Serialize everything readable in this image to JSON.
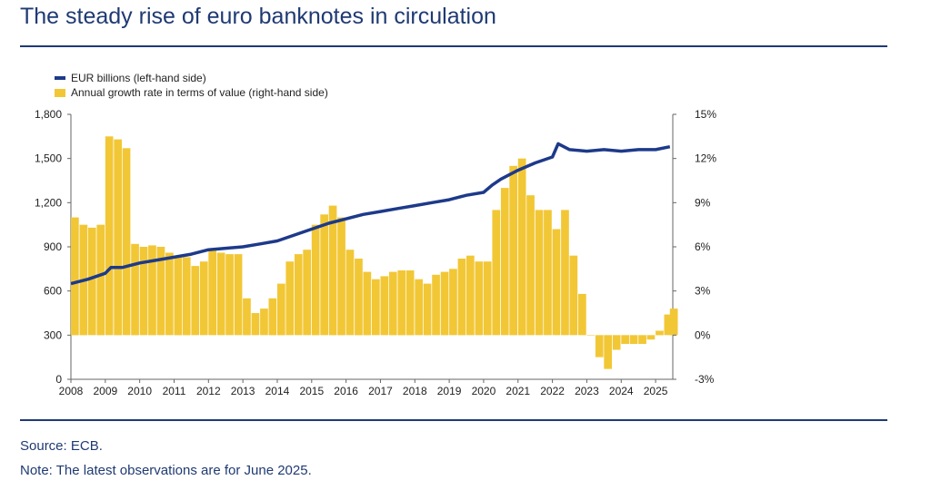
{
  "header": {
    "title": "The steady rise of euro banknotes in circulation"
  },
  "footer": {
    "source": "Source: ECB.",
    "note": "Note: The latest observations are for June 2025."
  },
  "colors": {
    "line": "#1d3a8a",
    "bars": "#f2c736",
    "title": "#1f3a73"
  },
  "chart_data": {
    "type": "bar+line",
    "legend": [
      "EUR billions (left-hand side)",
      "Annual growth rate in terms of value (right-hand side)"
    ],
    "legend_position": "top-left",
    "grid": false,
    "left_axis": {
      "ylim": [
        0,
        1800
      ],
      "ticks": [
        "0",
        "300",
        "600",
        "900",
        "1,200",
        "1,500",
        "1,800"
      ]
    },
    "right_axis": {
      "ylim": [
        -3,
        15
      ],
      "ticks": [
        "-3%",
        "0%",
        "3%",
        "6%",
        "9%",
        "12%",
        "15%"
      ]
    },
    "x_axis": {
      "ticks": [
        "2008",
        "2009",
        "2010",
        "2011",
        "2012",
        "2013",
        "2014",
        "2015",
        "2016",
        "2017",
        "2018",
        "2019",
        "2020",
        "2021",
        "2022",
        "2023",
        "2024",
        "2025"
      ]
    },
    "series": [
      {
        "name": "EUR billions (left-hand side)",
        "kind": "line",
        "axis": "left",
        "x": [
          "2008-01",
          "2008-07",
          "2009-01",
          "2009-03",
          "2009-07",
          "2010-01",
          "2010-07",
          "2011-01",
          "2011-07",
          "2012-01",
          "2012-07",
          "2013-01",
          "2013-07",
          "2014-01",
          "2014-07",
          "2015-01",
          "2015-07",
          "2016-01",
          "2016-07",
          "2017-01",
          "2017-07",
          "2018-01",
          "2018-07",
          "2019-01",
          "2019-07",
          "2020-01",
          "2020-04",
          "2020-07",
          "2021-01",
          "2021-07",
          "2022-01",
          "2022-03",
          "2022-07",
          "2023-01",
          "2023-07",
          "2024-01",
          "2024-07",
          "2025-01",
          "2025-06"
        ],
        "values": [
          650,
          680,
          720,
          760,
          760,
          790,
          810,
          830,
          850,
          880,
          890,
          900,
          920,
          940,
          980,
          1020,
          1060,
          1090,
          1120,
          1140,
          1160,
          1180,
          1200,
          1220,
          1250,
          1270,
          1320,
          1360,
          1420,
          1470,
          1510,
          1600,
          1560,
          1550,
          1560,
          1550,
          1560,
          1560,
          1580
        ]
      },
      {
        "name": "Annual growth rate in terms of value (right-hand side)",
        "kind": "bar",
        "axis": "right",
        "x": [
          "2008-01",
          "2008-04",
          "2008-07",
          "2008-10",
          "2009-01",
          "2009-04",
          "2009-07",
          "2009-10",
          "2010-01",
          "2010-04",
          "2010-07",
          "2010-10",
          "2011-01",
          "2011-04",
          "2011-07",
          "2011-10",
          "2012-01",
          "2012-04",
          "2012-07",
          "2012-10",
          "2013-01",
          "2013-04",
          "2013-07",
          "2013-10",
          "2014-01",
          "2014-04",
          "2014-07",
          "2014-10",
          "2015-01",
          "2015-04",
          "2015-07",
          "2015-10",
          "2016-01",
          "2016-04",
          "2016-07",
          "2016-10",
          "2017-01",
          "2017-04",
          "2017-07",
          "2017-10",
          "2018-01",
          "2018-04",
          "2018-07",
          "2018-10",
          "2019-01",
          "2019-04",
          "2019-07",
          "2019-10",
          "2020-01",
          "2020-04",
          "2020-07",
          "2020-10",
          "2021-01",
          "2021-04",
          "2021-07",
          "2021-10",
          "2022-01",
          "2022-04",
          "2022-07",
          "2022-10",
          "2023-01",
          "2023-04",
          "2023-07",
          "2023-10",
          "2024-01",
          "2024-04",
          "2024-07",
          "2024-10",
          "2025-01",
          "2025-04",
          "2025-06"
        ],
        "values": [
          8.0,
          7.5,
          7.3,
          7.5,
          13.5,
          13.3,
          12.7,
          6.2,
          6.0,
          6.1,
          6.0,
          5.6,
          5.3,
          5.3,
          4.7,
          5.0,
          5.8,
          5.6,
          5.5,
          5.5,
          2.5,
          1.5,
          1.8,
          2.5,
          3.5,
          5.0,
          5.5,
          5.8,
          7.5,
          8.2,
          8.8,
          8.0,
          5.8,
          5.2,
          4.3,
          3.8,
          4.0,
          4.3,
          4.4,
          4.4,
          3.8,
          3.5,
          4.1,
          4.3,
          4.5,
          5.2,
          5.4,
          5.0,
          5.0,
          8.5,
          10.0,
          11.5,
          12.0,
          9.5,
          8.5,
          8.5,
          7.2,
          8.5,
          5.4,
          2.8,
          0.0,
          -1.5,
          -2.3,
          -1.0,
          -0.6,
          -0.6,
          -0.6,
          -0.3,
          0.3,
          1.4,
          1.8
        ]
      }
    ]
  }
}
